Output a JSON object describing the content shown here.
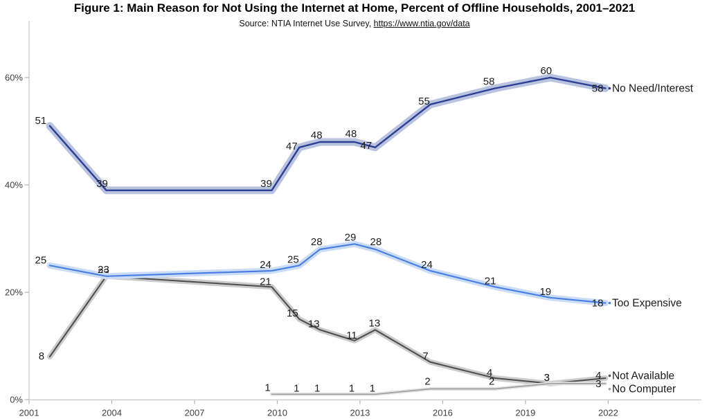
{
  "header": {
    "title": "Figure 1: Main Reason for Not Using the Internet at Home, Percent of Offline Households, 2001–2021",
    "source_prefix": "Source: NTIA Internet Use Survey, ",
    "source_link": "https://www.ntia.gov/data"
  },
  "chart_data": {
    "type": "line",
    "title": "Figure 1: Main Reason for Not Using the Internet at Home, Percent of Offline Households, 2001–2021",
    "subtitle": "Source: NTIA Internet Use Survey, https://www.ntia.gov/data",
    "xlabel": "",
    "ylabel": "Percent of Offline Households",
    "grid": false,
    "legend_position": "end-of-line-labels",
    "x_range": [
      2001,
      2025.4
    ],
    "y_range": [
      0,
      70
    ],
    "x_ticks": [
      2001,
      2004,
      2007,
      2010,
      2013,
      2016,
      2019,
      2022
    ],
    "y_ticks": [
      {
        "value": 0,
        "label": "0%"
      },
      {
        "value": 20,
        "label": "20%"
      },
      {
        "value": 40,
        "label": "40%"
      },
      {
        "value": 60,
        "label": "60%"
      }
    ],
    "survey_years": [
      2001,
      2003,
      2009,
      2010,
      2011,
      2012,
      2013,
      2015,
      2017,
      2019,
      2021
    ],
    "series": [
      {
        "name": "Not Available",
        "color": "#4f4f4f",
        "band_color": "#cccccc",
        "band_width": 8,
        "line_width": 2.1,
        "name_dy": -3.5,
        "points": [
          {
            "year": 2001,
            "x": 2001.75,
            "v": 8,
            "dx": -12,
            "dy": 4
          },
          {
            "year": 2003,
            "x": 2003.8,
            "v": 23,
            "dx": -4,
            "dy": -1
          },
          {
            "year": 2009,
            "x": 2009.8,
            "v": 21,
            "dx": -9,
            "dy": -3
          },
          {
            "year": 2010,
            "x": 2010.8,
            "v": 15,
            "dx": -10,
            "dy": -4
          },
          {
            "year": 2011,
            "x": 2011.55,
            "v": 13,
            "dx": -9,
            "dy": -4
          },
          {
            "year": 2012,
            "x": 2012.8,
            "v": 11,
            "dx": -4,
            "dy": -3
          },
          {
            "year": 2013,
            "x": 2013.55,
            "v": 13,
            "dx": -1,
            "dy": -5
          },
          {
            "year": 2015,
            "x": 2015.55,
            "v": 7,
            "dx": -7,
            "dy": -4
          },
          {
            "year": 2017,
            "x": 2017.9,
            "v": 4,
            "dx": -8,
            "dy": -3
          },
          {
            "year": 2019,
            "x": 2019.9,
            "v": 3,
            "dx": -5,
            "dy": -4
          },
          {
            "year": 2021,
            "x": 2021.9,
            "v": 4,
            "dx": -5,
            "dy": 1
          }
        ]
      },
      {
        "name": "No Computer",
        "color": "#9f9f9f",
        "band_color": "#e2e2e2",
        "band_width": 5,
        "line_width": 1.7,
        "name_dy": 8,
        "points": [
          {
            "year": 2009,
            "x": 2009.8,
            "v": 1,
            "dx": -6,
            "dy": -5
          },
          {
            "year": 2010,
            "x": 2010.8,
            "v": 1,
            "dx": -4,
            "dy": -4
          },
          {
            "year": 2011,
            "x": 2011.55,
            "v": 1,
            "dx": -4,
            "dy": -4
          },
          {
            "year": 2012,
            "x": 2012.8,
            "v": 1,
            "dx": -4,
            "dy": -4
          },
          {
            "year": 2013,
            "x": 2013.55,
            "v": 1,
            "dx": -4,
            "dy": -4
          },
          {
            "year": 2015,
            "x": 2015.55,
            "v": 2,
            "dx": -4,
            "dy": -6
          },
          {
            "year": 2017,
            "x": 2017.9,
            "v": 2,
            "dx": -5,
            "dy": -6
          },
          {
            "year": 2019,
            "x": 2019.9,
            "v": 3,
            "dx": -5,
            "dy": -4
          },
          {
            "year": 2021,
            "x": 2021.9,
            "v": 3,
            "dx": -5,
            "dy": 5
          }
        ]
      },
      {
        "name": "No Need/Interest",
        "color": "#2c3d92",
        "band_color": "#b9c2de",
        "band_width": 11,
        "line_width": 2.4,
        "name_dy": 0,
        "points": [
          {
            "year": 2001,
            "x": 2001.75,
            "v": 51,
            "dx": -13,
            "dy": -3
          },
          {
            "year": 2003,
            "x": 2003.8,
            "v": 39,
            "dx": -6,
            "dy": -5
          },
          {
            "year": 2009,
            "x": 2009.8,
            "v": 39,
            "dx": -8,
            "dy": -5
          },
          {
            "year": 2010,
            "x": 2010.8,
            "v": 47,
            "dx": -11,
            "dy": 3
          },
          {
            "year": 2011,
            "x": 2011.55,
            "v": 48,
            "dx": -5,
            "dy": -5
          },
          {
            "year": 2012,
            "x": 2012.8,
            "v": 48,
            "dx": -5,
            "dy": -7
          },
          {
            "year": 2013,
            "x": 2013.55,
            "v": 47,
            "dx": -13,
            "dy": 2
          },
          {
            "year": 2015,
            "x": 2015.55,
            "v": 55,
            "dx": -9,
            "dy": 0
          },
          {
            "year": 2017,
            "x": 2017.9,
            "v": 58,
            "dx": -9,
            "dy": -5
          },
          {
            "year": 2019,
            "x": 2019.9,
            "v": 60,
            "dx": -6,
            "dy": -5
          },
          {
            "year": 2021,
            "x": 2021.9,
            "v": 58,
            "dx": -2,
            "dy": 5
          }
        ]
      },
      {
        "name": "Too Expensive",
        "color": "#4b80e1",
        "band_color": "#cadcf6",
        "band_width": 9,
        "line_width": 2.2,
        "name_dy": 0,
        "points": [
          {
            "year": 2001,
            "x": 2001.75,
            "v": 25,
            "dx": -13,
            "dy": -3
          },
          {
            "year": 2003,
            "x": 2003.8,
            "v": 23,
            "dx": -4,
            "dy": -5
          },
          {
            "year": 2009,
            "x": 2009.8,
            "v": 24,
            "dx": -9,
            "dy": -4
          },
          {
            "year": 2010,
            "x": 2010.8,
            "v": 25,
            "dx": -9,
            "dy": -4
          },
          {
            "year": 2011,
            "x": 2011.55,
            "v": 28,
            "dx": -5,
            "dy": -6
          },
          {
            "year": 2012,
            "x": 2012.8,
            "v": 29,
            "dx": -6,
            "dy": -5
          },
          {
            "year": 2013,
            "x": 2013.55,
            "v": 28,
            "dx": 1,
            "dy": -6
          },
          {
            "year": 2015,
            "x": 2015.55,
            "v": 24,
            "dx": -5,
            "dy": -4
          },
          {
            "year": 2017,
            "x": 2017.9,
            "v": 21,
            "dx": -7,
            "dy": -4
          },
          {
            "year": 2019,
            "x": 2019.9,
            "v": 19,
            "dx": -7,
            "dy": -4
          },
          {
            "year": 2021,
            "x": 2021.9,
            "v": 18,
            "dx": -2,
            "dy": 5
          }
        ]
      }
    ],
    "style": {
      "axis_line_color": "#c9c9c9",
      "tick_color": "#b5b5b5",
      "axis_text_color": "#404040",
      "data_label_color": "#1c1c1c"
    }
  }
}
